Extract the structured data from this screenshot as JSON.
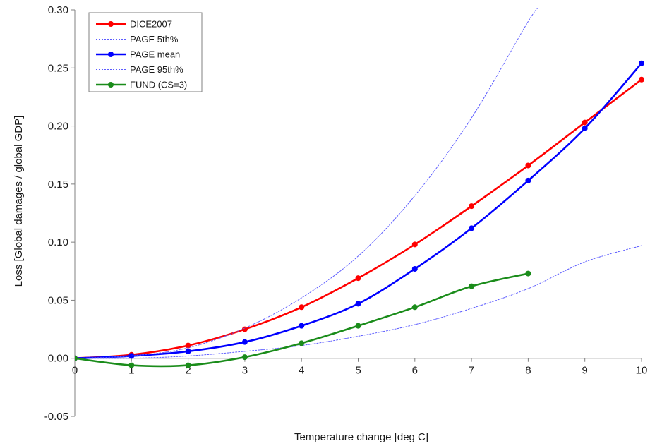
{
  "chart_data": {
    "type": "line",
    "title": "",
    "xlabel": "Temperature change [deg C]",
    "ylabel": "Loss  [Global damages / global GDP]",
    "xlim": [
      0,
      10
    ],
    "ylim": [
      -0.05,
      0.3
    ],
    "x_ticks": [
      "0",
      "1",
      "2",
      "3",
      "4",
      "5",
      "6",
      "7",
      "8",
      "9",
      "10"
    ],
    "y_ticks": [
      "-0.05",
      "0.00",
      "0.05",
      "0.10",
      "0.15",
      "0.20",
      "0.25",
      "0.30"
    ],
    "grid": false,
    "legend_position": "top-left",
    "series": [
      {
        "name": "DICE2007",
        "color": "#ff0000",
        "style": "solid-markers",
        "x": [
          0,
          1,
          2,
          3,
          4,
          5,
          6,
          7,
          8,
          9,
          10
        ],
        "y": [
          0.0,
          0.003,
          0.011,
          0.025,
          0.044,
          0.069,
          0.098,
          0.131,
          0.166,
          0.203,
          0.24
        ]
      },
      {
        "name": "PAGE 5th%",
        "color": "#5c5cff",
        "style": "dotted",
        "x": [
          0,
          1,
          2,
          3,
          4,
          5,
          6,
          7,
          8,
          9,
          10
        ],
        "y": [
          0.0,
          0.0,
          0.002,
          0.006,
          0.011,
          0.019,
          0.029,
          0.043,
          0.06,
          0.083,
          0.097
        ]
      },
      {
        "name": "PAGE mean",
        "color": "#0000ff",
        "style": "solid-markers",
        "x": [
          0,
          1,
          2,
          3,
          4,
          5,
          6,
          7,
          8,
          9,
          10
        ],
        "y": [
          0.0,
          0.002,
          0.006,
          0.014,
          0.028,
          0.047,
          0.077,
          0.112,
          0.153,
          0.198,
          0.254
        ]
      },
      {
        "name": "PAGE 95th%",
        "color": "#5c5cff",
        "style": "dotted",
        "x": [
          0,
          1,
          2,
          3,
          4,
          5,
          6,
          7,
          8,
          8.2
        ],
        "y": [
          0.0,
          0.002,
          0.009,
          0.026,
          0.052,
          0.088,
          0.14,
          0.207,
          0.29,
          0.302
        ]
      },
      {
        "name": "FUND (CS=3)",
        "color": "#1a8c1a",
        "style": "solid-markers",
        "x": [
          0,
          1,
          2,
          3,
          4,
          5,
          6,
          7,
          8
        ],
        "y": [
          0.0,
          -0.006,
          -0.006,
          0.001,
          0.013,
          0.028,
          0.044,
          0.062,
          0.073
        ]
      }
    ]
  }
}
